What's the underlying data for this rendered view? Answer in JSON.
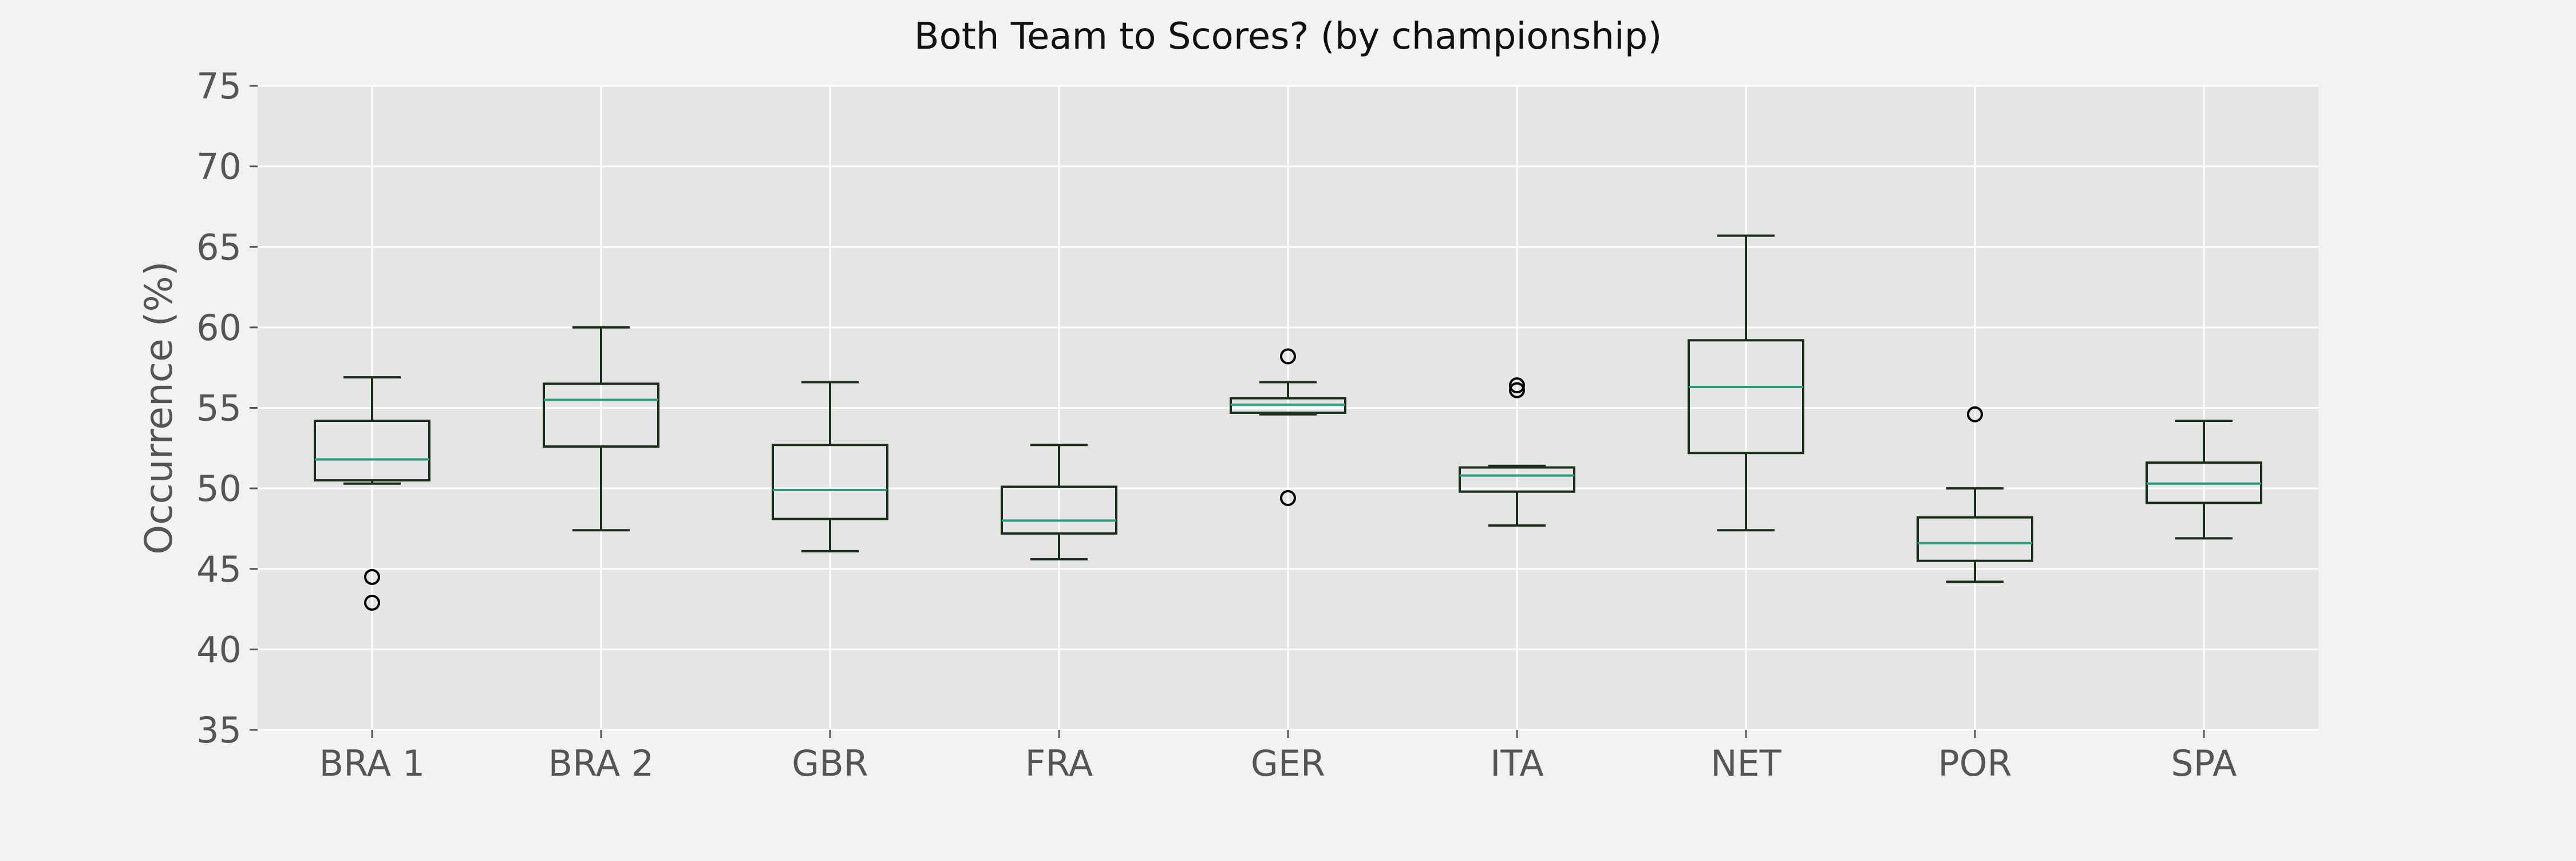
{
  "chart_data": {
    "type": "boxplot",
    "title": "Both Team to Scores? (by championship)",
    "xlabel": "",
    "ylabel": "Occurrence (%)",
    "ylim": [
      35,
      75
    ],
    "yticks": [
      35,
      40,
      45,
      50,
      55,
      60,
      65,
      70,
      75
    ],
    "grid": true,
    "legend": "none",
    "categories": [
      "BRA 1",
      "BRA 2",
      "GBR",
      "FRA",
      "GER",
      "ITA",
      "NET",
      "POR",
      "SPA"
    ],
    "boxes": [
      {
        "label": "BRA 1",
        "whisker_low": 50.3,
        "q1": 50.5,
        "median": 51.8,
        "q3": 54.2,
        "whisker_high": 56.9,
        "outliers": [
          44.5,
          42.9
        ]
      },
      {
        "label": "BRA 2",
        "whisker_low": 47.4,
        "q1": 52.6,
        "median": 55.5,
        "q3": 56.5,
        "whisker_high": 60.0,
        "outliers": []
      },
      {
        "label": "GBR",
        "whisker_low": 46.1,
        "q1": 48.1,
        "median": 49.9,
        "q3": 52.7,
        "whisker_high": 56.6,
        "outliers": []
      },
      {
        "label": "FRA",
        "whisker_low": 45.6,
        "q1": 47.2,
        "median": 48.0,
        "q3": 50.1,
        "whisker_high": 52.7,
        "outliers": []
      },
      {
        "label": "GER",
        "whisker_low": 54.6,
        "q1": 54.7,
        "median": 55.2,
        "q3": 55.6,
        "whisker_high": 56.6,
        "outliers": [
          58.2,
          49.4
        ]
      },
      {
        "label": "ITA",
        "whisker_low": 47.7,
        "q1": 49.8,
        "median": 50.8,
        "q3": 51.3,
        "whisker_high": 51.4,
        "outliers": [
          56.1,
          56.4
        ]
      },
      {
        "label": "NET",
        "whisker_low": 47.4,
        "q1": 52.2,
        "median": 56.3,
        "q3": 59.2,
        "whisker_high": 65.7,
        "outliers": []
      },
      {
        "label": "POR",
        "whisker_low": 44.2,
        "q1": 45.5,
        "median": 46.6,
        "q3": 48.2,
        "whisker_high": 50.0,
        "outliers": [
          54.6
        ]
      },
      {
        "label": "SPA",
        "whisker_low": 46.9,
        "q1": 49.1,
        "median": 50.3,
        "q3": 51.6,
        "whisker_high": 54.2,
        "outliers": []
      }
    ],
    "colors": {
      "figure_bg": "#f2f2f2",
      "plot_bg": "#e5e5e5",
      "grid": "#ffffff",
      "box": "#1a2e1a",
      "median": "#2a9d7f",
      "tick_text": "#555555",
      "title_text": "#111111"
    }
  }
}
